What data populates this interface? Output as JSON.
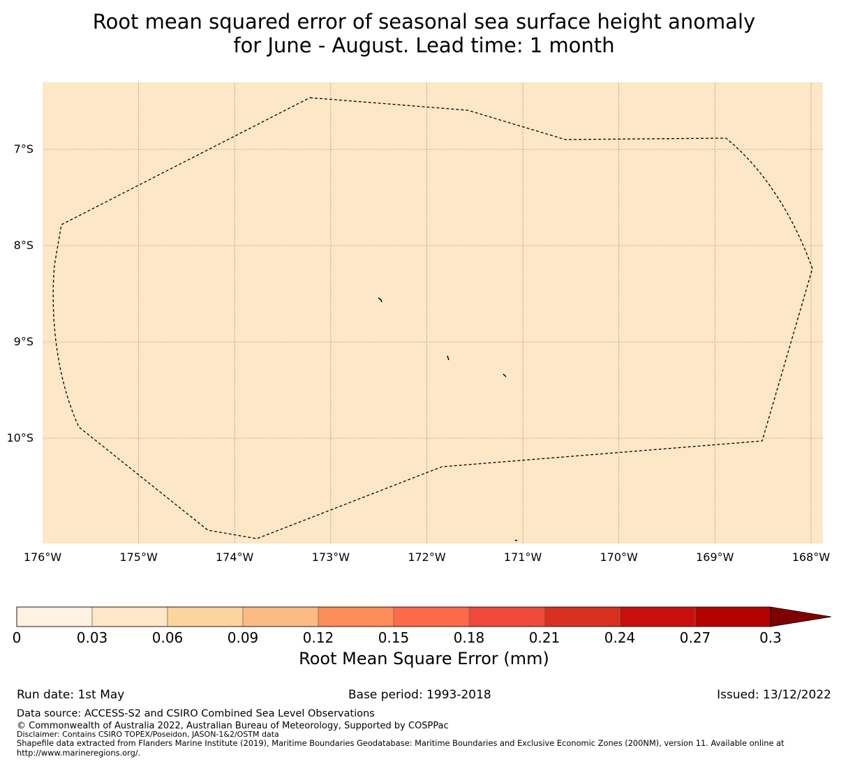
{
  "title": {
    "line1": "Root mean squared error of seasonal sea surface height anomaly",
    "line2": "for June - August. Lead time: 1 month"
  },
  "map": {
    "background_color": "#fde7c7",
    "lat_labels": [
      "7°S",
      "8°S",
      "9°S",
      "10°S"
    ],
    "lon_labels": [
      "176°W",
      "175°W",
      "174°W",
      "173°W",
      "172°W",
      "171°W",
      "170°W",
      "169°W",
      "168°W"
    ]
  },
  "colorbar": {
    "colors": [
      "#fff2e2",
      "#fde7c7",
      "#fdd49e",
      "#fdbb84",
      "#fc8d59",
      "#fc6a4a",
      "#ef4a3b",
      "#d7301f",
      "#c9100e",
      "#b30000"
    ],
    "extend_color": "#7f0000",
    "ticks": [
      "0",
      "0.03",
      "0.06",
      "0.09",
      "0.12",
      "0.15",
      "0.18",
      "0.21",
      "0.24",
      "0.27",
      "0.3"
    ],
    "label": "Root Mean Square Error (mm)"
  },
  "footer": {
    "run_date": "Run date: 1st May",
    "base_period": "Base period: 1993-2018",
    "issued": "Issued: 13/12/2022",
    "data_source": "Data source: ACCESS-S2 and CSIRO Combined Sea Level Observations",
    "copyright": "© Commonwealth of Australia 2022, Australian Bureau of Meteorology, Supported by COSPPac",
    "disclaimer": "Disclaimer: Contains CSIRO TOPEX/Poseidon, JASON-1&2/OSTM data",
    "shapefile_line1": "Shapefile data extracted from Flanders Marine Institute (2019), Maritime Boundaries Geodatabase: Maritime Boundaries and Exclusive Economic Zones (200NM), version 11. Available online at",
    "shapefile_line2": "http://www.marineregions.org/."
  }
}
